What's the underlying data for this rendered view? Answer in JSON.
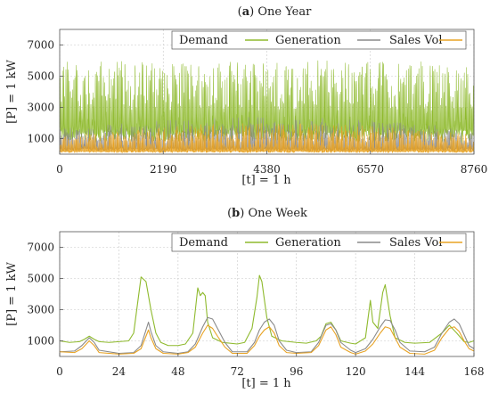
{
  "chart_data": [
    {
      "type": "line",
      "panel_tag": "a",
      "title": "One Year",
      "xlabel": "[t] = 1 h",
      "ylabel": "[P] = 1 kW",
      "xlim": [
        0,
        8760
      ],
      "ylim": [
        0,
        8000
      ],
      "xticks": [
        0,
        2190,
        4380,
        6570,
        8760
      ],
      "yticks": [
        1000,
        3000,
        5000,
        7000
      ],
      "grid": true,
      "legend_position": "top-right",
      "series_style": "dense_hourly_spikes",
      "series": [
        {
          "name": "Demand",
          "color": "#8fba2e",
          "baseline": 1200,
          "peak_range": [
            2800,
            6000
          ],
          "days": 365
        },
        {
          "name": "Generation",
          "color": "#8a8a8a",
          "baseline": 300,
          "peak_range": [
            700,
            2400
          ],
          "days": 365
        },
        {
          "name": "Sales Vol",
          "color": "#e8a324",
          "baseline": 150,
          "peak_range": [
            400,
            2000
          ],
          "days": 365
        }
      ]
    },
    {
      "type": "line",
      "panel_tag": "b",
      "title": "One Week",
      "xlabel": "[t] = 1 h",
      "ylabel": "[P] = 1 kW",
      "xlim": [
        0,
        168
      ],
      "ylim": [
        0,
        8000
      ],
      "xticks": [
        0,
        24,
        48,
        72,
        96,
        120,
        144,
        168
      ],
      "yticks": [
        1000,
        3000,
        5000,
        7000
      ],
      "grid": true,
      "legend_position": "top-right",
      "series": [
        {
          "name": "Demand",
          "color": "#8fba2e",
          "points": [
            [
              0,
              1000
            ],
            [
              4,
              900
            ],
            [
              8,
              950
            ],
            [
              10,
              1100
            ],
            [
              12,
              1300
            ],
            [
              14,
              1100
            ],
            [
              16,
              950
            ],
            [
              20,
              900
            ],
            [
              24,
              950
            ],
            [
              28,
              1000
            ],
            [
              30,
              1500
            ],
            [
              33,
              5100
            ],
            [
              35,
              4800
            ],
            [
              37,
              3000
            ],
            [
              39,
              1500
            ],
            [
              41,
              900
            ],
            [
              44,
              700
            ],
            [
              48,
              700
            ],
            [
              51,
              800
            ],
            [
              54,
              1500
            ],
            [
              56,
              4400
            ],
            [
              57,
              3900
            ],
            [
              58,
              4100
            ],
            [
              59,
              3900
            ],
            [
              60,
              2200
            ],
            [
              62,
              1200
            ],
            [
              66,
              900
            ],
            [
              72,
              800
            ],
            [
              75,
              900
            ],
            [
              78,
              1800
            ],
            [
              80,
              3800
            ],
            [
              81,
              5200
            ],
            [
              82,
              4800
            ],
            [
              84,
              2500
            ],
            [
              86,
              1300
            ],
            [
              90,
              1000
            ],
            [
              96,
              900
            ],
            [
              100,
              850
            ],
            [
              104,
              1000
            ],
            [
              106,
              1300
            ],
            [
              108,
              2100
            ],
            [
              110,
              2200
            ],
            [
              112,
              1700
            ],
            [
              114,
              1000
            ],
            [
              118,
              850
            ],
            [
              120,
              800
            ],
            [
              124,
              1200
            ],
            [
              126,
              3600
            ],
            [
              127,
              2200
            ],
            [
              129,
              1800
            ],
            [
              131,
              4100
            ],
            [
              132,
              4600
            ],
            [
              134,
              2600
            ],
            [
              136,
              1200
            ],
            [
              140,
              900
            ],
            [
              144,
              850
            ],
            [
              150,
              900
            ],
            [
              155,
              1500
            ],
            [
              158,
              2000
            ],
            [
              161,
              1500
            ],
            [
              164,
              950
            ],
            [
              166,
              900
            ],
            [
              168,
              1000
            ]
          ]
        },
        {
          "name": "Generation",
          "color": "#8a8a8a",
          "points": [
            [
              0,
              300
            ],
            [
              6,
              350
            ],
            [
              9,
              700
            ],
            [
              12,
              1200
            ],
            [
              14,
              900
            ],
            [
              16,
              400
            ],
            [
              24,
              200
            ],
            [
              30,
              250
            ],
            [
              33,
              700
            ],
            [
              35,
              1700
            ],
            [
              36,
              2200
            ],
            [
              37,
              1600
            ],
            [
              39,
              700
            ],
            [
              42,
              300
            ],
            [
              48,
              200
            ],
            [
              52,
              300
            ],
            [
              55,
              800
            ],
            [
              58,
              1900
            ],
            [
              60,
              2500
            ],
            [
              62,
              2400
            ],
            [
              64,
              1800
            ],
            [
              67,
              900
            ],
            [
              70,
              300
            ],
            [
              76,
              300
            ],
            [
              79,
              900
            ],
            [
              81,
              1700
            ],
            [
              83,
              2200
            ],
            [
              85,
              2400
            ],
            [
              87,
              2000
            ],
            [
              89,
              1000
            ],
            [
              92,
              400
            ],
            [
              96,
              250
            ],
            [
              102,
              300
            ],
            [
              105,
              900
            ],
            [
              108,
              2000
            ],
            [
              110,
              2100
            ],
            [
              112,
              1700
            ],
            [
              114,
              900
            ],
            [
              118,
              400
            ],
            [
              120,
              250
            ],
            [
              124,
              500
            ],
            [
              127,
              1100
            ],
            [
              130,
              1900
            ],
            [
              132,
              2350
            ],
            [
              134,
              2300
            ],
            [
              136,
              1700
            ],
            [
              138,
              900
            ],
            [
              142,
              350
            ],
            [
              148,
              300
            ],
            [
              152,
              600
            ],
            [
              155,
              1500
            ],
            [
              158,
              2200
            ],
            [
              160,
              2400
            ],
            [
              162,
              2100
            ],
            [
              164,
              1400
            ],
            [
              166,
              700
            ],
            [
              168,
              500
            ]
          ]
        },
        {
          "name": "Sales Vol",
          "color": "#e8a324",
          "points": [
            [
              0,
              300
            ],
            [
              6,
              250
            ],
            [
              9,
              500
            ],
            [
              12,
              1000
            ],
            [
              14,
              700
            ],
            [
              16,
              250
            ],
            [
              24,
              150
            ],
            [
              30,
              200
            ],
            [
              33,
              500
            ],
            [
              35,
              1300
            ],
            [
              36,
              1700
            ],
            [
              37,
              1200
            ],
            [
              39,
              500
            ],
            [
              42,
              200
            ],
            [
              48,
              150
            ],
            [
              52,
              250
            ],
            [
              55,
              600
            ],
            [
              58,
              1500
            ],
            [
              60,
              2000
            ],
            [
              62,
              1800
            ],
            [
              64,
              1300
            ],
            [
              67,
              600
            ],
            [
              70,
              200
            ],
            [
              76,
              200
            ],
            [
              79,
              700
            ],
            [
              81,
              1300
            ],
            [
              83,
              1700
            ],
            [
              85,
              1900
            ],
            [
              87,
              1500
            ],
            [
              89,
              700
            ],
            [
              92,
              250
            ],
            [
              96,
              200
            ],
            [
              102,
              250
            ],
            [
              105,
              700
            ],
            [
              108,
              1700
            ],
            [
              110,
              1900
            ],
            [
              112,
              1400
            ],
            [
              114,
              600
            ],
            [
              118,
              250
            ],
            [
              120,
              150
            ],
            [
              124,
              350
            ],
            [
              127,
              800
            ],
            [
              130,
              1500
            ],
            [
              132,
              1900
            ],
            [
              134,
              1800
            ],
            [
              136,
              1200
            ],
            [
              138,
              600
            ],
            [
              142,
              200
            ],
            [
              148,
              150
            ],
            [
              152,
              400
            ],
            [
              155,
              1200
            ],
            [
              158,
              1800
            ],
            [
              160,
              1900
            ],
            [
              162,
              1600
            ],
            [
              164,
              1000
            ],
            [
              166,
              500
            ],
            [
              168,
              350
            ]
          ]
        }
      ]
    }
  ]
}
